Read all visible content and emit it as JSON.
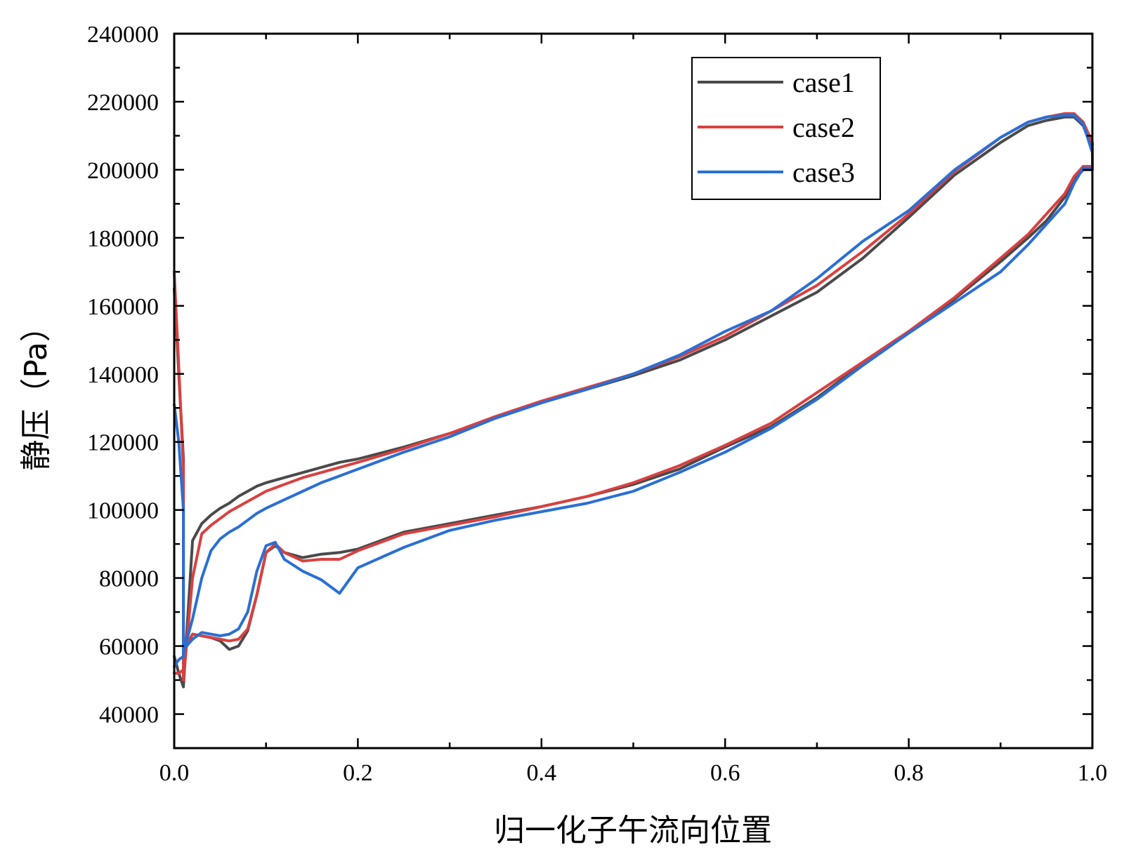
{
  "chart_data": {
    "type": "line",
    "title": "",
    "xlabel": "归一化子午流向位置",
    "ylabel": "静压（Pa）",
    "xlim": [
      0.0,
      1.0
    ],
    "ylim": [
      30000,
      240000
    ],
    "x_ticks": [
      0.0,
      0.2,
      0.4,
      0.6,
      0.8,
      1.0
    ],
    "x_tick_labels": [
      "0.0",
      "0.2",
      "0.4",
      "0.6",
      "0.8",
      "1.0"
    ],
    "y_ticks": [
      40000,
      60000,
      80000,
      100000,
      120000,
      140000,
      160000,
      180000,
      200000,
      220000,
      240000
    ],
    "y_tick_labels": [
      "40000",
      "60000",
      "80000",
      "100000",
      "120000",
      "140000",
      "160000",
      "180000",
      "200000",
      "220000",
      "240000"
    ],
    "grid": false,
    "legend_position": "top-right",
    "series": [
      {
        "name": "case1",
        "color": "#4a4a4a",
        "x": [
          0.0,
          0.005,
          0.01,
          0.01,
          0.02,
          0.03,
          0.04,
          0.05,
          0.06,
          0.07,
          0.08,
          0.09,
          0.1,
          0.12,
          0.14,
          0.16,
          0.18,
          0.2,
          0.25,
          0.3,
          0.35,
          0.4,
          0.45,
          0.5,
          0.55,
          0.6,
          0.65,
          0.7,
          0.75,
          0.8,
          0.85,
          0.9,
          0.93,
          0.95,
          0.97,
          0.98,
          0.99,
          1.0,
          1.0,
          0.99,
          0.98,
          0.97,
          0.95,
          0.93,
          0.9,
          0.85,
          0.8,
          0.75,
          0.7,
          0.65,
          0.6,
          0.55,
          0.5,
          0.45,
          0.4,
          0.35,
          0.3,
          0.25,
          0.2,
          0.18,
          0.16,
          0.14,
          0.12,
          0.11,
          0.1,
          0.09,
          0.08,
          0.07,
          0.06,
          0.05,
          0.04,
          0.03,
          0.02,
          0.01,
          0.01,
          0.005,
          0.0
        ],
        "y": [
          165000,
          140000,
          115000,
          48000,
          91000,
          96000,
          98500,
          100500,
          102000,
          104000,
          105500,
          107000,
          108000,
          109500,
          111000,
          112500,
          114000,
          115000,
          118500,
          122500,
          127000,
          131500,
          135500,
          139500,
          144000,
          150000,
          157000,
          164000,
          174000,
          186000,
          198500,
          208000,
          213000,
          214500,
          215500,
          215500,
          213000,
          206000,
          200000,
          200000,
          197000,
          192000,
          185000,
          180000,
          173000,
          162000,
          152000,
          143000,
          133000,
          124500,
          118500,
          112000,
          107500,
          104000,
          101000,
          98500,
          96000,
          93500,
          88500,
          87500,
          87000,
          86000,
          87500,
          89500,
          87500,
          75000,
          64500,
          60000,
          59000,
          61500,
          62500,
          63000,
          63500,
          58000,
          48000,
          52000,
          57000
        ]
      },
      {
        "name": "case2",
        "color": "#d94040",
        "x": [
          0.0,
          0.005,
          0.01,
          0.01,
          0.02,
          0.03,
          0.04,
          0.05,
          0.06,
          0.07,
          0.08,
          0.09,
          0.1,
          0.12,
          0.14,
          0.16,
          0.18,
          0.2,
          0.25,
          0.3,
          0.35,
          0.4,
          0.45,
          0.5,
          0.55,
          0.6,
          0.65,
          0.7,
          0.75,
          0.8,
          0.85,
          0.9,
          0.93,
          0.95,
          0.97,
          0.98,
          0.99,
          1.0,
          1.0,
          0.99,
          0.98,
          0.97,
          0.95,
          0.93,
          0.9,
          0.85,
          0.8,
          0.75,
          0.7,
          0.65,
          0.6,
          0.55,
          0.5,
          0.45,
          0.4,
          0.35,
          0.3,
          0.25,
          0.2,
          0.18,
          0.16,
          0.14,
          0.12,
          0.11,
          0.1,
          0.09,
          0.08,
          0.07,
          0.06,
          0.05,
          0.04,
          0.03,
          0.02,
          0.01,
          0.01,
          0.005,
          0.0
        ],
        "y": [
          170000,
          142000,
          112000,
          50000,
          80000,
          93000,
          95500,
          97500,
          99500,
          101000,
          102500,
          104000,
          105500,
          107500,
          109500,
          111000,
          112500,
          114000,
          118000,
          122500,
          127500,
          132000,
          136000,
          140000,
          145000,
          151000,
          158500,
          166000,
          176000,
          187000,
          199500,
          209500,
          214000,
          215500,
          216500,
          216500,
          214000,
          208000,
          201000,
          201000,
          198000,
          193000,
          187000,
          181000,
          174000,
          162500,
          152500,
          143500,
          134500,
          125500,
          119000,
          113000,
          108000,
          104000,
          101000,
          98000,
          95500,
          93000,
          88000,
          85500,
          85500,
          85000,
          87500,
          90000,
          87500,
          75000,
          65000,
          62000,
          61500,
          62000,
          62500,
          63000,
          63500,
          59000,
          53000,
          52000,
          52000
        ]
      },
      {
        "name": "case3",
        "color": "#2a6fd4",
        "x": [
          0.0,
          0.005,
          0.01,
          0.01,
          0.02,
          0.03,
          0.04,
          0.05,
          0.06,
          0.07,
          0.08,
          0.09,
          0.1,
          0.12,
          0.14,
          0.16,
          0.18,
          0.2,
          0.25,
          0.3,
          0.35,
          0.4,
          0.45,
          0.5,
          0.55,
          0.6,
          0.65,
          0.7,
          0.75,
          0.8,
          0.85,
          0.9,
          0.93,
          0.95,
          0.97,
          0.98,
          0.99,
          1.0,
          1.0,
          0.99,
          0.98,
          0.97,
          0.95,
          0.93,
          0.9,
          0.85,
          0.8,
          0.75,
          0.7,
          0.65,
          0.6,
          0.55,
          0.5,
          0.45,
          0.4,
          0.35,
          0.3,
          0.25,
          0.2,
          0.18,
          0.16,
          0.14,
          0.12,
          0.11,
          0.1,
          0.09,
          0.08,
          0.07,
          0.06,
          0.05,
          0.04,
          0.03,
          0.02,
          0.01,
          0.01,
          0.005,
          0.0
        ],
        "y": [
          131000,
          120000,
          100000,
          58000,
          68000,
          80000,
          88000,
          91500,
          93500,
          95000,
          97000,
          99000,
          100500,
          103000,
          105500,
          108000,
          110000,
          112000,
          117000,
          121500,
          127000,
          131500,
          135500,
          140000,
          145500,
          152500,
          158500,
          168000,
          179000,
          188000,
          200000,
          209500,
          214000,
          215500,
          216000,
          216000,
          213500,
          205000,
          200500,
          200500,
          196000,
          190000,
          184000,
          178000,
          170000,
          161000,
          152000,
          142500,
          132500,
          124000,
          117000,
          111000,
          105500,
          102000,
          99500,
          97000,
          94000,
          89000,
          83000,
          75500,
          79500,
          82000,
          85500,
          90500,
          89500,
          82000,
          70000,
          65000,
          63500,
          63000,
          63500,
          64000,
          62000,
          59000,
          57000,
          56000,
          54000
        ]
      }
    ]
  }
}
